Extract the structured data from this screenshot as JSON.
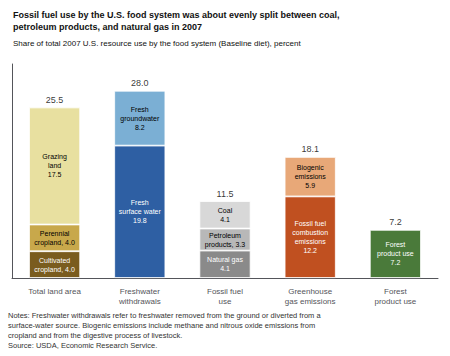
{
  "chart_data": {
    "type": "bar",
    "stacked": true,
    "title": "Fossil fuel use by the U.S. food system was about evenly split between coal,\npetroleum products, and natural gas in 2007",
    "subtitle": "Share of total 2007 U.S. resource use by the food system (Baseline diet), percent",
    "notes": "Notes: Freshwater withdrawals refer to freshwater removed from the ground or diverted from a\nsurface-water source. Biogenic emissions include methane and nitrous oxide emissions from\ncropland and from the digestive process of livestock.\nSource: USDA, Economic Research Service.",
    "categories": [
      "Total land area",
      "Freshwater\nwithdrawals",
      "Fossil fuel\nuse",
      "Greenhouse\ngas emissions",
      "Forest\nproduct use"
    ],
    "series": [
      {
        "color": "#7a5c1e",
        "values": [
          4.0,
          null,
          null,
          null,
          null
        ],
        "value_labels": [
          "Cultivated\ncropland, 4.0",
          null,
          null,
          null,
          null
        ]
      },
      {
        "color": "#c8a84b",
        "values": [
          4.0,
          null,
          null,
          null,
          null
        ],
        "value_labels": [
          "Perennial\ncropland, 4.0",
          null,
          null,
          null,
          null
        ]
      },
      {
        "color": "#e8e0a0",
        "values": [
          17.5,
          null,
          null,
          null,
          null
        ],
        "value_labels": [
          "Grazing\nland\n17.5",
          null,
          null,
          null,
          null
        ]
      },
      {
        "color": "#2e5fa3",
        "values": [
          null,
          19.8,
          null,
          null,
          null
        ],
        "value_labels": [
          null,
          "Fresh\nsurface water\n19.8",
          null,
          null,
          null
        ]
      },
      {
        "color": "#7bafd4",
        "values": [
          null,
          8.2,
          null,
          null,
          null
        ],
        "value_labels": [
          null,
          "Fresh\ngroundwater\n8.2",
          null,
          null,
          null
        ]
      },
      {
        "color": "#8a8a8a",
        "values": [
          null,
          null,
          4.1,
          null,
          null
        ],
        "value_labels": [
          null,
          null,
          "Natural gas\n4.1",
          null,
          null
        ]
      },
      {
        "color": "#b8b8b8",
        "values": [
          null,
          null,
          3.3,
          null,
          null
        ],
        "value_labels": [
          null,
          null,
          "Petroleum\nproducts, 3.3",
          null,
          null
        ]
      },
      {
        "color": "#d8d8d8",
        "values": [
          null,
          null,
          4.1,
          null,
          null
        ],
        "value_labels": [
          null,
          null,
          "Coal\n4.1",
          null,
          null
        ]
      },
      {
        "color": "#c05020",
        "values": [
          null,
          null,
          null,
          12.2,
          null
        ],
        "value_labels": [
          null,
          null,
          null,
          "Fossil fuel\ncombustion\nemissions\n12.2",
          null
        ]
      },
      {
        "color": "#e8a878",
        "values": [
          null,
          null,
          null,
          5.9,
          null
        ],
        "value_labels": [
          null,
          null,
          null,
          "Biogenic\nemissions\n5.9",
          null
        ]
      },
      {
        "color": "#4a7a3a",
        "values": [
          null,
          null,
          null,
          null,
          7.2
        ],
        "value_labels": [
          null,
          null,
          null,
          null,
          "Forest\nproduct use\n7.2"
        ]
      }
    ],
    "totals": [
      25.5,
      28.0,
      11.5,
      18.1,
      7.2
    ],
    "total_labels": [
      "25.5",
      "28.0",
      "11.5",
      "18.1",
      "7.2"
    ],
    "ylim": [
      0,
      32
    ],
    "grid": false,
    "tick_labels": "x",
    "data_labels": true
  }
}
